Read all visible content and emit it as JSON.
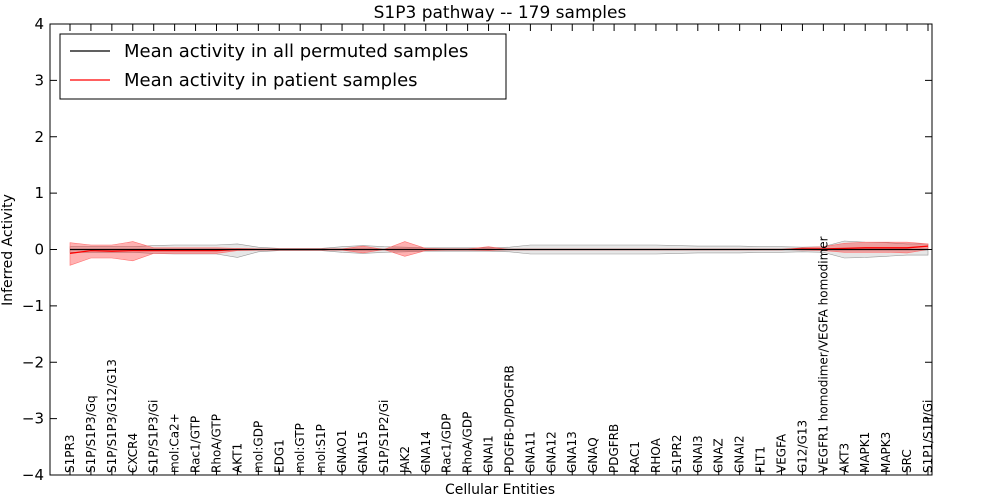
{
  "chart_data": {
    "type": "line",
    "title": "S1P3 pathway -- 179 samples",
    "xlabel": "Cellular Entities",
    "ylabel": "Inferred Activity",
    "ylim": [
      -4,
      4
    ],
    "yticks": [
      -4,
      -3,
      -2,
      -1,
      0,
      1,
      2,
      3,
      4
    ],
    "ytick_labels": [
      "−4",
      "−3",
      "−2",
      "−1",
      "0",
      "1",
      "2",
      "3",
      "4"
    ],
    "legend_position": "top-left",
    "categories": [
      "S1PR3",
      "S1P/S1P3/Gq",
      "S1P/S1P3/G12/G13",
      "CXCR4",
      "S1P/S1P3/Gi",
      "mol:Ca2+",
      "Rac1/GTP",
      "RhoA/GTP",
      "AKT1",
      "mol:GDP",
      "EDG1",
      "mol:GTP",
      "mol:S1P",
      "GNAO1",
      "GNA15",
      "S1P/S1P2/Gi",
      "JAK2",
      "GNA14",
      "Rac1/GDP",
      "RhoA/GDP",
      "GNAI1",
      "PDGFB-D/PDGFRB",
      "GNA11",
      "GNA12",
      "GNA13",
      "GNAQ",
      "PDGFRB",
      "RAC1",
      "RHOA",
      "S1PR2",
      "GNAI3",
      "GNAZ",
      "GNAI2",
      "FLT1",
      "VEGFA",
      "G12/G13",
      "VEGFR1 homodimer/VEGFA homodimer",
      "AKT3",
      "MAPK1",
      "MAPK3",
      "SRC",
      "S1P1/S1P/Gi"
    ],
    "series": [
      {
        "name": "Mean activity in all permuted samples",
        "color": "#000000",
        "values": [
          0.0,
          0.0,
          0.0,
          0.0,
          0.0,
          0.0,
          0.0,
          0.0,
          0.0,
          0.0,
          0.0,
          0.0,
          0.0,
          0.0,
          0.0,
          0.0,
          0.0,
          0.0,
          0.0,
          0.0,
          0.0,
          0.0,
          0.0,
          0.0,
          0.0,
          0.0,
          0.0,
          0.0,
          0.0,
          0.0,
          0.0,
          0.0,
          0.0,
          0.0,
          0.0,
          0.0,
          0.0,
          0.0,
          0.0,
          0.0,
          0.0,
          0.0
        ],
        "lower": [
          -0.05,
          -0.05,
          -0.05,
          -0.05,
          -0.07,
          -0.08,
          -0.08,
          -0.08,
          -0.14,
          -0.04,
          -0.02,
          -0.02,
          -0.02,
          -0.05,
          -0.07,
          -0.05,
          -0.04,
          -0.03,
          -0.03,
          -0.03,
          -0.03,
          -0.04,
          -0.08,
          -0.08,
          -0.08,
          -0.08,
          -0.08,
          -0.08,
          -0.08,
          -0.07,
          -0.06,
          -0.06,
          -0.06,
          -0.05,
          -0.05,
          -0.04,
          -0.05,
          -0.15,
          -0.14,
          -0.12,
          -0.1,
          -0.1
        ],
        "upper": [
          0.05,
          0.05,
          0.05,
          0.05,
          0.07,
          0.08,
          0.08,
          0.08,
          0.1,
          0.04,
          0.02,
          0.02,
          0.02,
          0.05,
          0.07,
          0.05,
          0.04,
          0.03,
          0.03,
          0.03,
          0.03,
          0.04,
          0.08,
          0.08,
          0.08,
          0.08,
          0.08,
          0.08,
          0.08,
          0.07,
          0.06,
          0.06,
          0.06,
          0.05,
          0.05,
          0.04,
          0.05,
          0.15,
          0.13,
          0.12,
          0.1,
          0.1
        ]
      },
      {
        "name": "Mean activity in patient samples",
        "color": "#ff0000",
        "values": [
          -0.07,
          -0.02,
          -0.03,
          -0.02,
          -0.02,
          -0.02,
          -0.02,
          -0.02,
          0.0,
          0.0,
          0.0,
          0.0,
          0.0,
          0.0,
          0.0,
          0.0,
          0.0,
          0.0,
          0.0,
          0.0,
          0.0,
          0.0,
          0.0,
          0.0,
          0.0,
          0.0,
          0.0,
          0.0,
          0.0,
          0.0,
          0.0,
          0.0,
          0.0,
          0.0,
          0.0,
          0.01,
          0.01,
          0.02,
          0.03,
          0.03,
          0.03,
          0.06
        ],
        "lower": [
          -0.28,
          -0.15,
          -0.15,
          -0.2,
          -0.07,
          -0.07,
          -0.07,
          -0.07,
          -0.02,
          -0.01,
          -0.01,
          -0.01,
          -0.01,
          -0.01,
          -0.06,
          0.0,
          -0.12,
          -0.02,
          -0.01,
          -0.01,
          -0.02,
          0.0,
          0.0,
          0.0,
          0.0,
          0.0,
          0.0,
          0.0,
          0.0,
          0.0,
          0.0,
          0.0,
          0.0,
          0.0,
          0.0,
          -0.01,
          -0.02,
          -0.05,
          -0.05,
          -0.05,
          -0.06,
          0.0
        ],
        "upper": [
          0.12,
          0.08,
          0.08,
          0.14,
          0.03,
          0.03,
          0.03,
          0.03,
          0.02,
          0.01,
          0.01,
          0.01,
          0.01,
          0.01,
          0.06,
          0.0,
          0.14,
          0.02,
          0.01,
          0.01,
          0.05,
          0.0,
          0.0,
          0.0,
          0.0,
          0.0,
          0.0,
          0.0,
          0.0,
          0.0,
          0.0,
          0.0,
          0.0,
          0.0,
          0.0,
          0.03,
          0.05,
          0.11,
          0.13,
          0.13,
          0.13,
          0.1
        ]
      }
    ]
  }
}
